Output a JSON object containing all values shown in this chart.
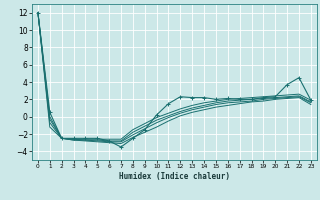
{
  "title": "",
  "xlabel": "Humidex (Indice chaleur)",
  "ylabel": "",
  "bg_color": "#cce8e8",
  "grid_color": "#ffffff",
  "line_color": "#1a7070",
  "xlim": [
    -0.5,
    23.5
  ],
  "ylim": [
    -5,
    13
  ],
  "xticks": [
    0,
    1,
    2,
    3,
    4,
    5,
    6,
    7,
    8,
    9,
    10,
    11,
    12,
    13,
    14,
    15,
    16,
    17,
    18,
    19,
    20,
    21,
    22,
    23
  ],
  "yticks": [
    -4,
    -2,
    0,
    2,
    4,
    6,
    8,
    10,
    12
  ],
  "lines": [
    {
      "x": [
        0,
        1,
        2,
        3,
        4,
        5,
        6,
        7,
        8,
        9,
        10,
        11,
        12,
        13,
        14,
        15,
        16,
        17,
        18,
        19,
        20,
        21,
        22,
        23
      ],
      "y": [
        12,
        0.5,
        -2.5,
        -2.5,
        -2.5,
        -2.5,
        -2.8,
        -3.5,
        -2.5,
        -1.5,
        0.2,
        1.5,
        2.3,
        2.2,
        2.2,
        2.0,
        2.1,
        2.0,
        2.0,
        2.2,
        2.3,
        3.7,
        4.5,
        1.9
      ],
      "marker": true
    },
    {
      "x": [
        0,
        1,
        2,
        3,
        4,
        5,
        6,
        7,
        8,
        9,
        10,
        11,
        12,
        13,
        14,
        15,
        16,
        17,
        18,
        19,
        20,
        21,
        22,
        23
      ],
      "y": [
        12,
        0.0,
        -2.5,
        -2.6,
        -2.6,
        -2.6,
        -2.6,
        -2.6,
        -1.5,
        -0.8,
        -0.1,
        0.4,
        0.9,
        1.3,
        1.6,
        1.8,
        2.0,
        2.1,
        2.2,
        2.3,
        2.4,
        2.5,
        2.6,
        1.9
      ],
      "marker": false
    },
    {
      "x": [
        0,
        1,
        2,
        3,
        4,
        5,
        6,
        7,
        8,
        9,
        10,
        11,
        12,
        13,
        14,
        15,
        16,
        17,
        18,
        19,
        20,
        21,
        22,
        23
      ],
      "y": [
        12,
        -0.3,
        -2.5,
        -2.6,
        -2.7,
        -2.7,
        -2.8,
        -2.8,
        -1.8,
        -1.1,
        -0.4,
        0.1,
        0.6,
        1.0,
        1.3,
        1.6,
        1.8,
        1.9,
        2.0,
        2.1,
        2.2,
        2.3,
        2.4,
        1.7
      ],
      "marker": false
    },
    {
      "x": [
        0,
        1,
        2,
        3,
        4,
        5,
        6,
        7,
        8,
        9,
        10,
        11,
        12,
        13,
        14,
        15,
        16,
        17,
        18,
        19,
        20,
        21,
        22,
        23
      ],
      "y": [
        12,
        -0.7,
        -2.5,
        -2.7,
        -2.7,
        -2.8,
        -2.9,
        -2.9,
        -2.1,
        -1.4,
        -0.7,
        -0.1,
        0.4,
        0.8,
        1.1,
        1.4,
        1.6,
        1.7,
        1.8,
        2.0,
        2.1,
        2.2,
        2.3,
        1.6
      ],
      "marker": false
    },
    {
      "x": [
        0,
        1,
        2,
        3,
        4,
        5,
        6,
        7,
        8,
        9,
        10,
        11,
        12,
        13,
        14,
        15,
        16,
        17,
        18,
        19,
        20,
        21,
        22,
        23
      ],
      "y": [
        12,
        -1.2,
        -2.5,
        -2.7,
        -2.8,
        -2.9,
        -3.0,
        -3.1,
        -2.4,
        -1.8,
        -1.2,
        -0.5,
        0.1,
        0.5,
        0.8,
        1.1,
        1.3,
        1.5,
        1.7,
        1.8,
        2.0,
        2.1,
        2.2,
        1.4
      ],
      "marker": false
    }
  ]
}
